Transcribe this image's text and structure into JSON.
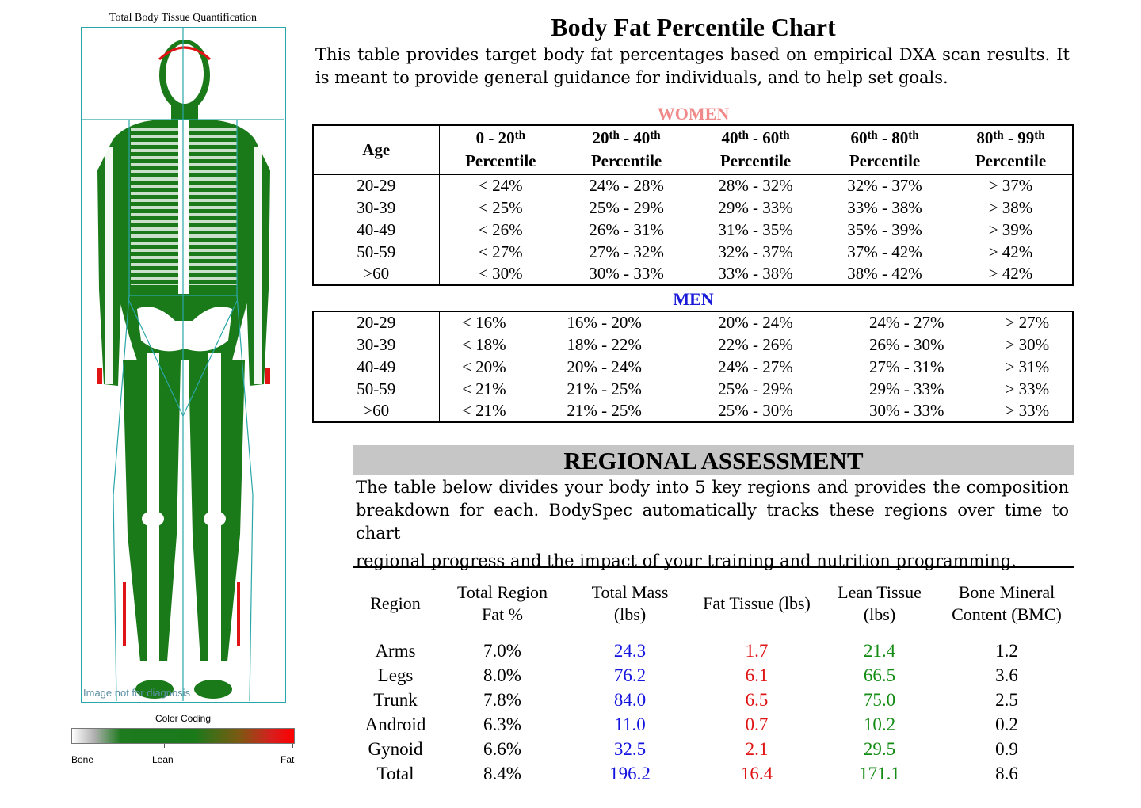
{
  "scan": {
    "title": "Total Body Tissue Quantification",
    "note": "Image not for diagnosis",
    "color_coding_title": "Color Coding",
    "legend": {
      "bone": "Bone",
      "lean": "Lean",
      "fat": "Fat"
    },
    "colors": {
      "lean": "#1a7a1a",
      "fat": "#e01414",
      "bone": "#ffffff",
      "region_lines": "#2aa6a8"
    }
  },
  "chart": {
    "title": "Body Fat Percentile Chart",
    "intro": "This table provides target body fat percentages based on empirical DXA scan results.  It is meant to provide general guidance for individuals, and to help set goals.",
    "women_label": "WOMEN",
    "men_label": "MEN",
    "columns": {
      "age": "Age",
      "percentile_word": "Percentile",
      "th": "th",
      "c1": {
        "a": "0 - 20",
        "b": ""
      },
      "c2": {
        "a": "20",
        "b": " - 40"
      },
      "c3": {
        "a": "40",
        "b": " - 60"
      },
      "c4": {
        "a": "60",
        "b": " - 80"
      },
      "c5": {
        "a": "80",
        "b": " - 99"
      }
    },
    "women": [
      [
        "20-29",
        "< 24%",
        "24% - 28%",
        "28% - 32%",
        "32% - 37%",
        "> 37%"
      ],
      [
        "30-39",
        "< 25%",
        "25% - 29%",
        "29% - 33%",
        "33% - 38%",
        "> 38%"
      ],
      [
        "40-49",
        "< 26%",
        "26% - 31%",
        "31% - 35%",
        "35% - 39%",
        "> 39%"
      ],
      [
        "50-59",
        "< 27%",
        "27% - 32%",
        "32% - 37%",
        "37% - 42%",
        "> 42%"
      ],
      [
        ">60",
        "< 30%",
        "30% - 33%",
        "33% - 38%",
        "38% - 42%",
        "> 42%"
      ]
    ],
    "men": [
      [
        "20-29",
        "< 16%",
        "16% - 20%",
        "20% - 24%",
        "24% - 27%",
        "> 27%"
      ],
      [
        "30-39",
        "< 18%",
        "18% - 22%",
        "22% - 26%",
        "26% - 30%",
        "> 30%"
      ],
      [
        "40-49",
        "< 20%",
        "20% - 24%",
        "24% - 27%",
        "27% - 31%",
        "> 31%"
      ],
      [
        "50-59",
        "< 21%",
        "21% - 25%",
        "25% - 29%",
        "29% - 33%",
        "> 33%"
      ],
      [
        ">60",
        "< 21%",
        "21% - 25%",
        "25% - 30%",
        "30% - 33%",
        "> 33%"
      ]
    ]
  },
  "regional": {
    "title": "REGIONAL ASSESSMENT",
    "text_1": "The table below divides your body into 5 key regions and provides the composition breakdown for each.  BodySpec automatically tracks these regions over time to chart",
    "text_2": "regional progress and the impact of your training and nutrition programming.",
    "headers": {
      "region": "Region",
      "fat_pct": [
        "Total Region",
        "Fat %"
      ],
      "mass": [
        "Total Mass",
        "(lbs)"
      ],
      "fat": "Fat Tissue (lbs)",
      "lean": [
        "Lean Tissue",
        "(lbs)"
      ],
      "bmc": [
        "Bone Mineral",
        "Content (BMC)"
      ]
    },
    "colors": {
      "mass": "#1414e0",
      "fat": "#e01414",
      "lean": "#148c14"
    },
    "rows": [
      [
        "Arms",
        "7.0%",
        "24.3",
        "1.7",
        "21.4",
        "1.2"
      ],
      [
        "Legs",
        "8.0%",
        "76.2",
        "6.1",
        "66.5",
        "3.6"
      ],
      [
        "Trunk",
        "7.8%",
        "84.0",
        "6.5",
        "75.0",
        "2.5"
      ],
      [
        "Android",
        "6.3%",
        "11.0",
        "0.7",
        "10.2",
        "0.2"
      ],
      [
        "Gynoid",
        "6.6%",
        "32.5",
        "2.1",
        "29.5",
        "0.9"
      ],
      [
        "Total",
        "8.4%",
        "196.2",
        "16.4",
        "171.1",
        "8.6"
      ]
    ]
  }
}
